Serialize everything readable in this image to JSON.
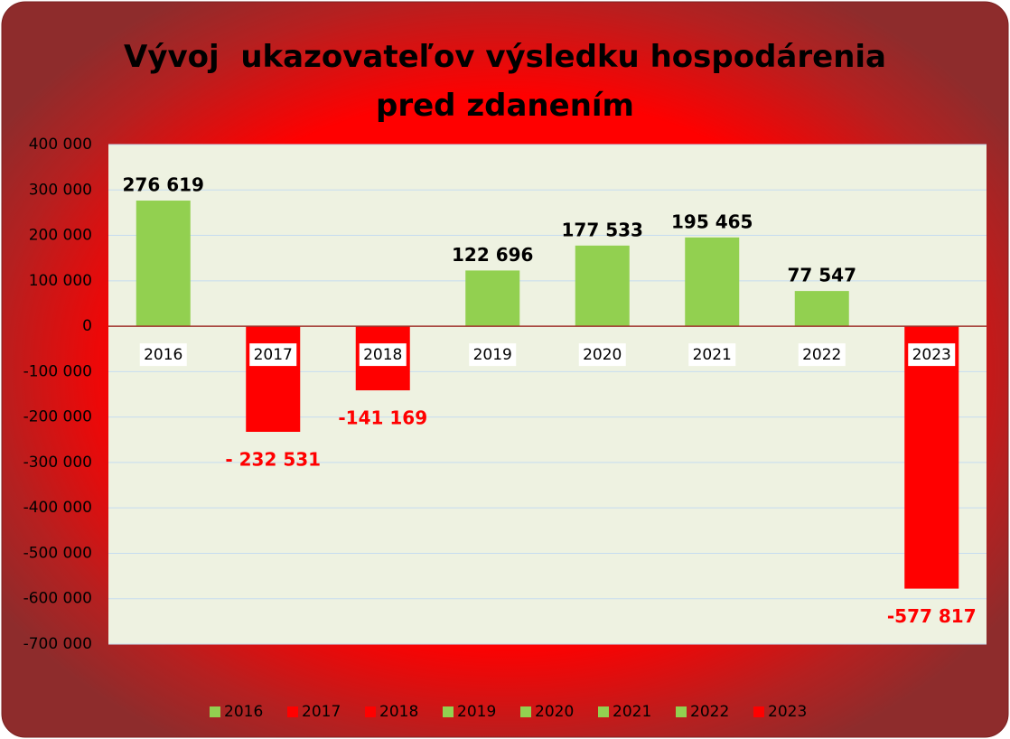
{
  "chart_data": {
    "type": "bar",
    "title": "Vývoj  ukazovateľov výsledku hospodárenia pred zdanením",
    "categories": [
      "2016",
      "2017",
      "2018",
      "2019",
      "2020",
      "2021",
      "2022",
      "2023"
    ],
    "values": [
      276619,
      -232531,
      -141169,
      122696,
      177533,
      195465,
      77547,
      -577817
    ],
    "value_labels": [
      "276 619",
      "- 232 531",
      "-141 169",
      "122 696",
      "177 533",
      "195 465",
      "77 547",
      "-577 817"
    ],
    "colors": [
      "#92d050",
      "#ff0000",
      "#ff0000",
      "#92d050",
      "#92d050",
      "#92d050",
      "#92d050",
      "#ff0000"
    ],
    "ylim": [
      -700000,
      400000
    ],
    "yticks": [
      {
        "value": 400000,
        "label": "400 000"
      },
      {
        "value": 300000,
        "label": "300 000"
      },
      {
        "value": 200000,
        "label": "200 000"
      },
      {
        "value": 100000,
        "label": "100 000"
      },
      0,
      {
        "value": -100000,
        "label": "-100 000"
      },
      {
        "value": -200000,
        "label": "-200 000"
      },
      {
        "value": -300000,
        "label": "-300 000"
      },
      {
        "value": -400000,
        "label": "-400 000"
      },
      {
        "value": -500000,
        "label": "-500 000"
      },
      {
        "value": -600000,
        "label": "-600 000"
      },
      {
        "value": -700000,
        "label": "-700 000"
      }
    ],
    "grid": true,
    "legend": "bottom"
  }
}
